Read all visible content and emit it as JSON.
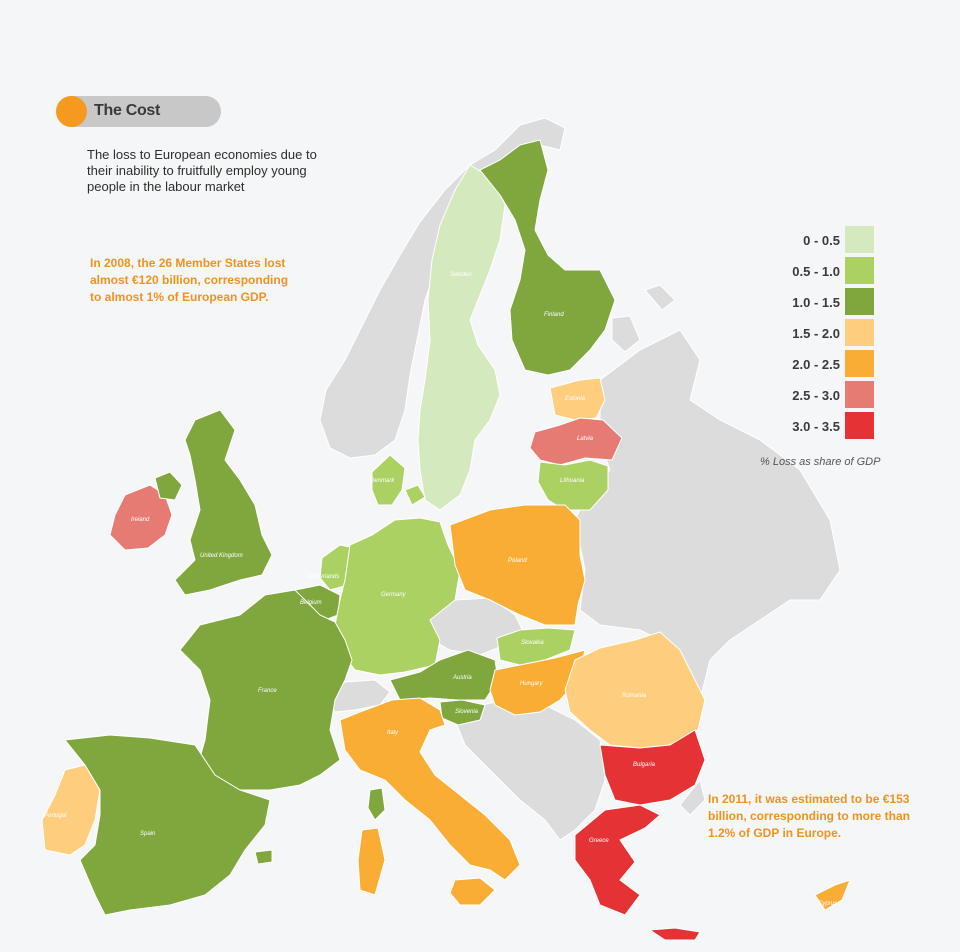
{
  "header": {
    "title": "The Cost",
    "intro": "The loss to European economies due to their inability to fruitfully employ young people in the labour market"
  },
  "notes": {
    "note_2008": "In 2008, the 26 Member States lost almost €120 billion, corresponding to almost 1% of European GDP.",
    "note_2011": "In 2011, it was estimated to be €153 billion, corresponding to more than 1.2% of GDP in Europe."
  },
  "legend": {
    "caption": "% Loss as share of GDP",
    "items": [
      {
        "label": "0 - 0.5",
        "color": "#d4e9bd"
      },
      {
        "label": "0.5 - 1.0",
        "color": "#abd162"
      },
      {
        "label": "1.0 - 1.5",
        "color": "#7fa73d"
      },
      {
        "label": "1.5 - 2.0",
        "color": "#fecd7e"
      },
      {
        "label": "2.0 - 2.5",
        "color": "#f9ad34"
      },
      {
        "label": "2.5 - 3.0",
        "color": "#e57b72"
      },
      {
        "label": "3.0 - 3.5",
        "color": "#e53234"
      }
    ]
  },
  "countries": [
    {
      "name": "Sweden",
      "cls": 0
    },
    {
      "name": "Finland",
      "cls": 2
    },
    {
      "name": "Estonia",
      "cls": 3
    },
    {
      "name": "Latvia",
      "cls": 5
    },
    {
      "name": "Lithuania",
      "cls": 1
    },
    {
      "name": "Denmark",
      "cls": 1
    },
    {
      "name": "Ireland",
      "cls": 5
    },
    {
      "name": "United Kingdom",
      "cls": 2
    },
    {
      "name": "Netherlands",
      "cls": 1
    },
    {
      "name": "Belgium",
      "cls": 2
    },
    {
      "name": "Germany",
      "cls": 1
    },
    {
      "name": "Poland",
      "cls": 4
    },
    {
      "name": "France",
      "cls": 2
    },
    {
      "name": "Slovakia",
      "cls": 1
    },
    {
      "name": "Austria",
      "cls": 2
    },
    {
      "name": "Hungary",
      "cls": 4
    },
    {
      "name": "Slovenia",
      "cls": 2
    },
    {
      "name": "Romania",
      "cls": 3
    },
    {
      "name": "Italy",
      "cls": 4
    },
    {
      "name": "Bulgaria",
      "cls": 6
    },
    {
      "name": "Portugal",
      "cls": 3
    },
    {
      "name": "Spain",
      "cls": 2
    },
    {
      "name": "Greece",
      "cls": 6
    },
    {
      "name": "Cyprus",
      "cls": 4
    }
  ]
}
